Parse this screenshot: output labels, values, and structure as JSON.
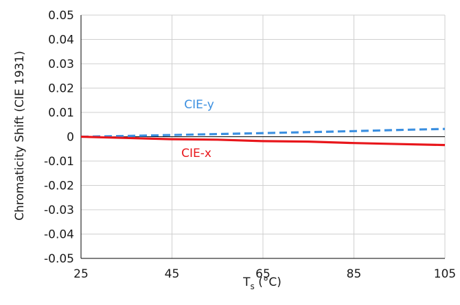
{
  "chart_data": {
    "type": "line",
    "title": "",
    "xlabel": {
      "main": "T",
      "sub": "s",
      "unit": " (°C)"
    },
    "ylabel": "Chromaticity Shift (CIE 1931)",
    "xlim": [
      25,
      105
    ],
    "ylim": [
      -0.05,
      0.05
    ],
    "x_ticks": [
      25,
      45,
      65,
      85,
      105
    ],
    "y_ticks": [
      "0.05",
      "0.04",
      "0.03",
      "0.02",
      "0.01",
      "0",
      "-0.01",
      "-0.02",
      "-0.03",
      "-0.04",
      "-0.05"
    ],
    "grid": true,
    "legend": "none",
    "series": [
      {
        "name": "CIE-y",
        "color": "#3b8fe0",
        "style": "dashed",
        "x": [
          25,
          35,
          45,
          55,
          65,
          75,
          85,
          95,
          105
        ],
        "y": [
          0.0,
          0.0003,
          0.0007,
          0.0011,
          0.0015,
          0.0019,
          0.0023,
          0.0028,
          0.0032
        ]
      },
      {
        "name": "CIE-x",
        "color": "#e8161b",
        "style": "solid",
        "x": [
          25,
          35,
          45,
          55,
          65,
          75,
          85,
          95,
          105
        ],
        "y": [
          0.0,
          -0.0005,
          -0.001,
          -0.0012,
          -0.0018,
          -0.002,
          -0.0026,
          -0.003,
          -0.0034
        ]
      }
    ]
  }
}
